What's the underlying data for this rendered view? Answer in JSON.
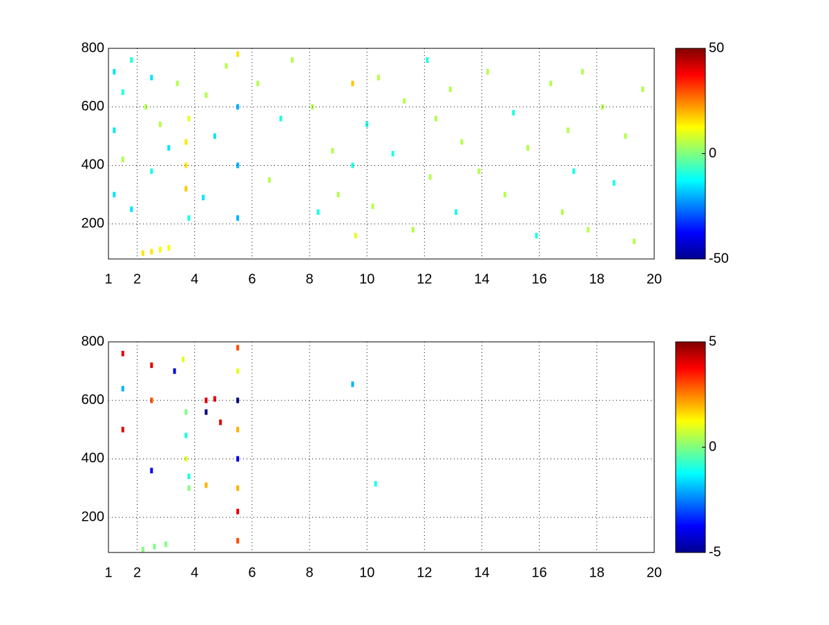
{
  "chart_data": [
    {
      "type": "heatmap",
      "colormap": "jet",
      "grid": true,
      "xlim": [
        1,
        20
      ],
      "xticks": [
        1,
        2,
        4,
        6,
        8,
        10,
        12,
        14,
        16,
        18,
        20
      ],
      "ylim": [
        80,
        800
      ],
      "yticks": [
        200,
        400,
        600,
        800
      ],
      "clim": [
        -50,
        50
      ],
      "cticks": [
        -50,
        0,
        50
      ],
      "x": [
        1.2,
        1.2,
        1.2,
        1.5,
        1.5,
        1.8,
        1.8,
        2.3,
        2.5,
        2.5,
        2.8,
        3.1,
        3.4,
        3.7,
        3.7,
        3.7,
        3.8,
        3.8,
        4.3,
        4.4,
        4.7,
        5.1,
        5.5,
        5.5,
        5.5,
        5.5,
        6.2,
        6.6,
        7.0,
        7.4,
        8.1,
        8.3,
        8.8,
        9.0,
        9.5,
        9.5,
        9.6,
        10.0,
        10.2,
        10.4,
        10.9,
        11.3,
        11.6,
        12.1,
        12.2,
        12.4,
        12.9,
        13.1,
        13.3,
        13.9,
        14.2,
        14.8,
        15.1,
        15.6,
        15.9,
        16.4,
        16.8,
        17.0,
        17.2,
        17.5,
        17.7,
        18.2,
        18.6,
        19.0,
        19.3,
        19.6,
        2.2,
        2.5,
        2.8,
        3.1
      ],
      "y": [
        720,
        520,
        300,
        650,
        420,
        760,
        250,
        600,
        700,
        380,
        540,
        460,
        680,
        480,
        400,
        320,
        560,
        220,
        290,
        640,
        500,
        740,
        780,
        600,
        400,
        220,
        680,
        350,
        560,
        760,
        600,
        240,
        450,
        300,
        680,
        400,
        160,
        540,
        260,
        700,
        440,
        620,
        180,
        760,
        360,
        560,
        660,
        240,
        480,
        380,
        720,
        300,
        580,
        460,
        160,
        680,
        240,
        520,
        380,
        720,
        180,
        600,
        340,
        500,
        140,
        660,
        100,
        105,
        112,
        118
      ],
      "values": [
        -15,
        -15,
        -15,
        -10,
        5,
        -10,
        -15,
        5,
        -15,
        -10,
        5,
        -15,
        5,
        15,
        15,
        18,
        10,
        -10,
        -15,
        5,
        -15,
        5,
        15,
        -20,
        -20,
        -20,
        5,
        5,
        -10,
        5,
        5,
        -10,
        5,
        5,
        18,
        -10,
        10,
        -10,
        5,
        5,
        -10,
        5,
        5,
        -10,
        5,
        5,
        5,
        -10,
        5,
        5,
        5,
        5,
        -10,
        5,
        -10,
        5,
        5,
        5,
        -10,
        5,
        5,
        5,
        -10,
        5,
        5,
        5,
        15,
        15,
        12,
        12
      ]
    },
    {
      "type": "heatmap",
      "colormap": "jet",
      "grid": true,
      "xlim": [
        1,
        20
      ],
      "xticks": [
        1,
        2,
        4,
        6,
        8,
        10,
        12,
        14,
        16,
        18,
        20
      ],
      "ylim": [
        80,
        800
      ],
      "yticks": [
        200,
        400,
        600,
        800
      ],
      "clim": [
        -5,
        5
      ],
      "cticks": [
        -5,
        0,
        5
      ],
      "x": [
        1.5,
        1.5,
        1.5,
        2.5,
        2.5,
        2.5,
        3.3,
        3.6,
        3.7,
        3.7,
        3.7,
        3.8,
        3.8,
        4.4,
        4.4,
        4.7,
        4.9,
        4.4,
        5.5,
        5.5,
        5.5,
        5.5,
        5.5,
        5.5,
        5.5,
        5.5,
        9.5,
        10.3,
        2.2,
        2.6,
        3.0
      ],
      "y": [
        760,
        640,
        500,
        720,
        600,
        360,
        700,
        740,
        560,
        480,
        400,
        340,
        300,
        600,
        560,
        605,
        525,
        310,
        780,
        700,
        600,
        500,
        400,
        300,
        220,
        120,
        655,
        315,
        90,
        100,
        108
      ],
      "values": [
        4,
        -2,
        4,
        4,
        3,
        -4,
        -4,
        1,
        0,
        -1,
        1,
        -1,
        0,
        4,
        -5,
        4,
        4,
        2,
        3,
        1,
        -5,
        2,
        -4,
        2,
        4,
        3,
        -2,
        -1,
        0,
        0,
        0
      ]
    }
  ]
}
